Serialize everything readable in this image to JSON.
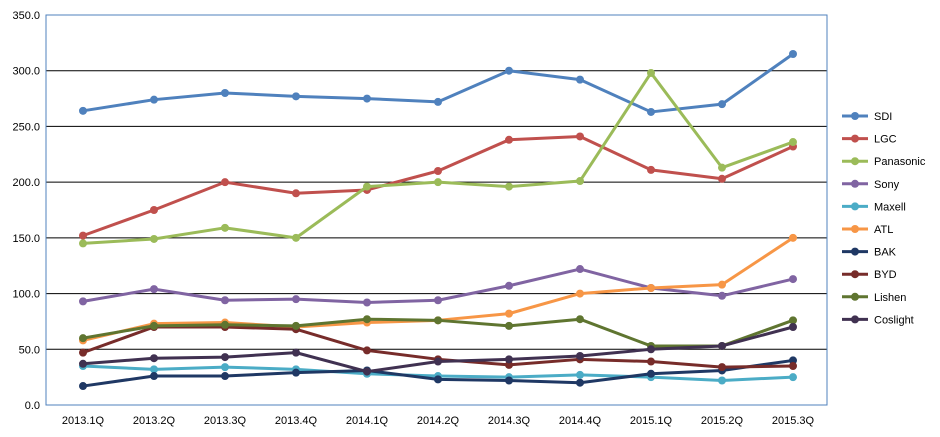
{
  "chart_data": {
    "type": "line",
    "categories": [
      "2013.1Q",
      "2013.2Q",
      "2013.3Q",
      "2013.4Q",
      "2014.1Q",
      "2014.2Q",
      "2014.3Q",
      "2014.4Q",
      "2015.1Q",
      "2015.2Q",
      "2015.3Q"
    ],
    "ylim": [
      0,
      350
    ],
    "yticks": [
      "0.0",
      "50.0",
      "100.0",
      "150.0",
      "200.0",
      "250.0",
      "300.0",
      "350.0"
    ],
    "ystep": 50,
    "grid": true,
    "legend_position": "right",
    "series": [
      {
        "name": "SDI",
        "color": "#4F81BD",
        "values": [
          264,
          274,
          280,
          277,
          275,
          272,
          300,
          292,
          263,
          270,
          315
        ]
      },
      {
        "name": "LGC",
        "color": "#C0504D",
        "values": [
          152,
          175,
          200,
          190,
          193,
          210,
          238,
          241,
          211,
          203,
          232
        ]
      },
      {
        "name": "Panasonic",
        "color": "#9BBB59",
        "values": [
          145,
          149,
          159,
          150,
          196,
          200,
          196,
          201,
          298,
          213,
          236
        ]
      },
      {
        "name": "Sony",
        "color": "#8064A2",
        "values": [
          93,
          104,
          94,
          95,
          92,
          94,
          107,
          122,
          105,
          98,
          113
        ]
      },
      {
        "name": "Maxell",
        "color": "#4BACC6",
        "values": [
          35,
          32,
          34,
          32,
          28,
          26,
          25,
          27,
          25,
          22,
          25
        ]
      },
      {
        "name": "ATL",
        "color": "#F79646",
        "values": [
          58,
          73,
          74,
          70,
          74,
          76,
          82,
          100,
          105,
          108,
          150
        ]
      },
      {
        "name": "BAK",
        "color": "#1F3864",
        "values": [
          17,
          26,
          26,
          29,
          31,
          23,
          22,
          20,
          28,
          31,
          40
        ]
      },
      {
        "name": "BYD",
        "color": "#772C2A",
        "values": [
          47,
          70,
          70,
          68,
          49,
          41,
          36,
          41,
          39,
          34,
          35
        ]
      },
      {
        "name": "Lishen",
        "color": "#5F7530",
        "values": [
          60,
          71,
          72,
          71,
          77,
          76,
          71,
          77,
          53,
          53,
          76
        ]
      },
      {
        "name": "Coslight",
        "color": "#403151",
        "values": [
          37,
          42,
          43,
          47,
          30,
          39,
          41,
          44,
          50,
          53,
          70
        ]
      }
    ]
  }
}
